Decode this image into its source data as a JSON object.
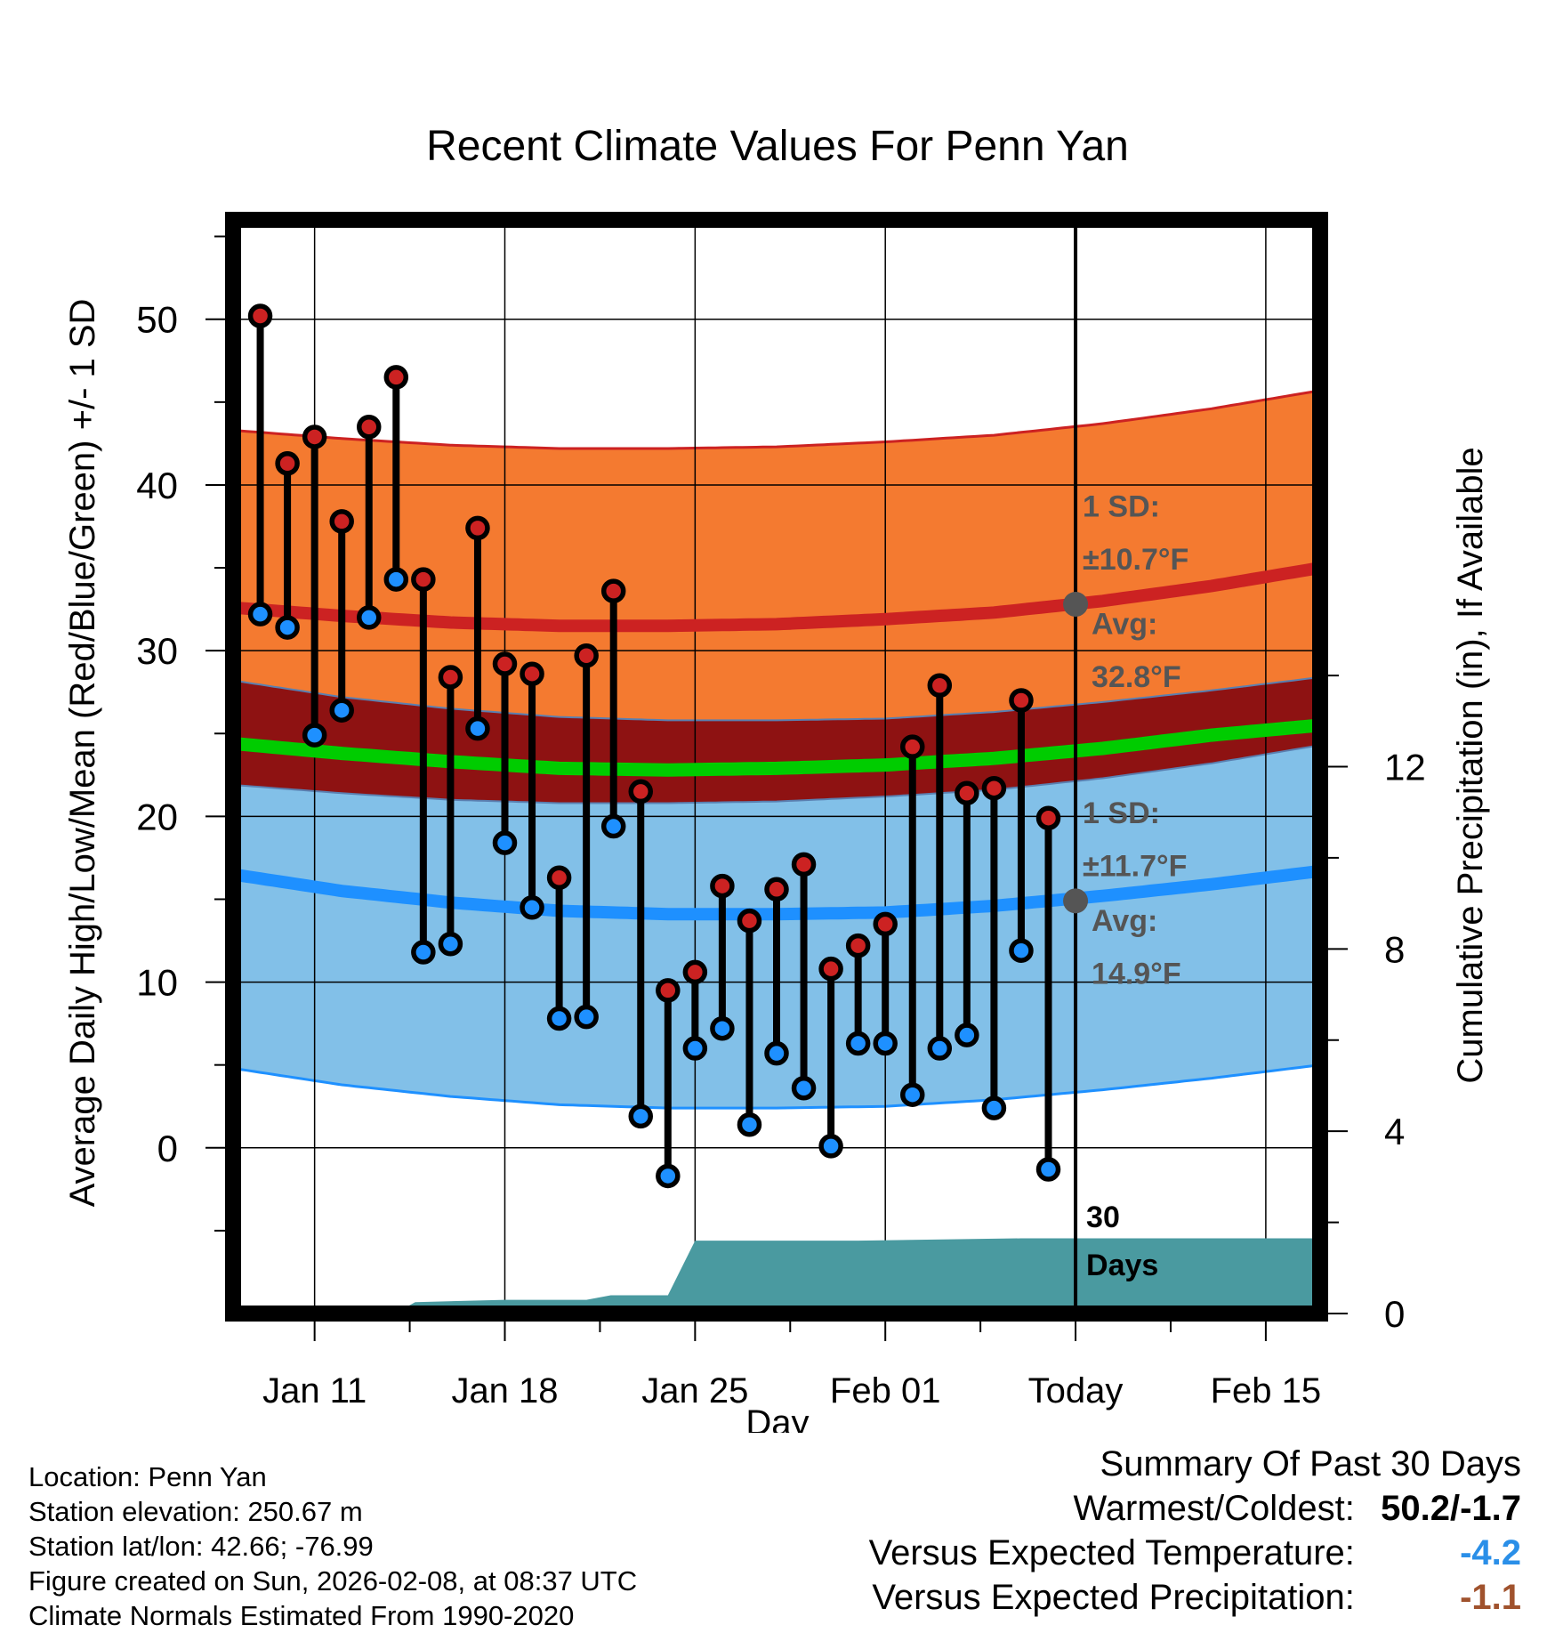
{
  "chart_data": {
    "type": "line",
    "title": "Recent Climate Values For Penn Yan",
    "xlabel": "Day",
    "ylabel": "Average Daily High/Low/Mean (Red/Blue/Green) +/- 1 SD",
    "y2label": "Cumulative Precipitation (in), If Available",
    "ylim": [
      -10,
      56
    ],
    "y2lim": [
      0,
      24
    ],
    "yticks": [
      "50",
      "40",
      "30",
      "20",
      "10",
      "0"
    ],
    "y2ticks": [
      "12",
      "8",
      "4",
      "0"
    ],
    "xticks": [
      {
        "day": 11,
        "label": "Jan 11"
      },
      {
        "day": 18,
        "label": "Jan 18"
      },
      {
        "day": 25,
        "label": "Jan 25"
      },
      {
        "day": 32,
        "label": "Feb 01"
      },
      {
        "day": 39,
        "label": "Today"
      },
      {
        "day": 46,
        "label": "Feb 15"
      }
    ],
    "xrange": [
      8,
      48
    ],
    "today_day": 39,
    "days": [
      9,
      10,
      11,
      12,
      13,
      14,
      15,
      16,
      17,
      18,
      19,
      20,
      21,
      22,
      23,
      24,
      25,
      26,
      27,
      28,
      29,
      30,
      31,
      32,
      33,
      34,
      35,
      36,
      37,
      38
    ],
    "highs": [
      50.2,
      41.3,
      42.9,
      37.8,
      43.5,
      46.5,
      34.3,
      28.4,
      37.4,
      29.2,
      28.6,
      16.3,
      29.7,
      33.6,
      21.5,
      9.5,
      10.6,
      15.8,
      13.7,
      15.6,
      17.1,
      10.8,
      12.2,
      13.5,
      24.2,
      27.9,
      21.4,
      21.7,
      27.0,
      19.9
    ],
    "lows": [
      32.2,
      31.4,
      24.9,
      26.4,
      32.0,
      34.3,
      11.8,
      12.3,
      25.3,
      18.4,
      14.5,
      7.8,
      7.9,
      19.4,
      1.9,
      -1.7,
      6.0,
      7.2,
      1.4,
      5.7,
      3.6,
      0.1,
      6.3,
      6.3,
      3.2,
      6.0,
      6.8,
      2.4,
      11.9,
      -1.3
    ],
    "normal_high": {
      "days": [
        8,
        12,
        16,
        20,
        24,
        28,
        32,
        36,
        40,
        44,
        48
      ],
      "values": [
        32.6,
        32.1,
        31.7,
        31.5,
        31.5,
        31.6,
        31.9,
        32.3,
        33.0,
        33.9,
        35.0
      ]
    },
    "normal_high_sd": 10.7,
    "normal_low": {
      "days": [
        8,
        12,
        16,
        20,
        24,
        28,
        32,
        36,
        40,
        44,
        48
      ],
      "values": [
        16.5,
        15.5,
        14.8,
        14.3,
        14.1,
        14.1,
        14.2,
        14.6,
        15.2,
        15.9,
        16.7
      ]
    },
    "normal_low_sd": 11.7,
    "normal_mean": {
      "days": [
        8,
        12,
        16,
        20,
        24,
        28,
        32,
        36,
        40,
        44,
        48
      ],
      "values": [
        24.4,
        23.8,
        23.3,
        22.9,
        22.8,
        22.9,
        23.1,
        23.5,
        24.1,
        24.9,
        25.5
      ]
    },
    "precip": {
      "days": [
        8,
        12.9,
        14.1,
        14.7,
        18,
        21,
        21.9,
        24,
        25,
        31,
        37,
        39,
        48
      ],
      "values": [
        0,
        0.05,
        0.05,
        0.25,
        0.3,
        0.3,
        0.4,
        0.4,
        1.6,
        1.6,
        1.65,
        1.65,
        1.65
      ]
    },
    "annotations": {
      "high_sd_label": "1 SD:",
      "high_sd_value": "±10.7°F",
      "high_avg_label": "Avg:",
      "high_avg_value": "32.8°F",
      "low_sd_label": "1 SD:",
      "low_sd_value": "±11.7°F",
      "low_avg_label": "Avg:",
      "low_avg_value": "14.9°F",
      "days_count": "30",
      "days_label": "Days"
    },
    "colors": {
      "high": "#cc2222",
      "low": "#1e90ff",
      "mean": "#00cc00",
      "high_band": "#f47a30",
      "low_band": "#82c0e8",
      "overlap_band": "#8e1212",
      "precip": "#4a9aa0",
      "annotation": "#555555"
    }
  },
  "footer": {
    "location": "Location: Penn Yan",
    "elevation": "Station elevation: 250.67 m",
    "latlon": "Station lat/lon: 42.66; -76.99",
    "created": "Figure created on Sun, 2026-02-08, at 08:37 UTC",
    "normals": "Climate Normals Estimated From 1990-2020"
  },
  "summary": {
    "title": "Summary Of Past 30 Days",
    "warmest_label": "Warmest/Coldest:",
    "warmest_value": "50.2/-1.7",
    "temp_label": "Versus Expected Temperature:",
    "temp_value": "-4.2",
    "precip_label": "Versus Expected Precipitation:",
    "precip_value": "-1.1",
    "temp_color": "#2a8fe8",
    "precip_color": "#a0522d"
  }
}
